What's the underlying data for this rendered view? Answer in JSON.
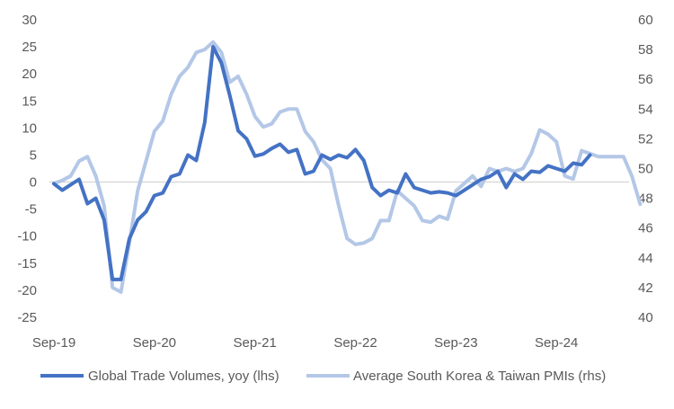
{
  "chart_data": {
    "type": "line",
    "title": "",
    "xlabel": "",
    "x_tick_labels": [
      "Sep-19",
      "Sep-20",
      "Sep-21",
      "Sep-22",
      "Sep-23",
      "Sep-24"
    ],
    "x_start": "2019-09",
    "y_left": {
      "range": [
        -25,
        30
      ],
      "step": 5,
      "ticks": [
        "30",
        "25",
        "20",
        "15",
        "10",
        "5",
        "0",
        "-5",
        "-10",
        "-15",
        "-20",
        "-25"
      ]
    },
    "y_right": {
      "range": [
        40,
        60
      ],
      "step": 2,
      "ticks": [
        "60",
        "58",
        "56",
        "54",
        "52",
        "50",
        "48",
        "46",
        "44",
        "42",
        "40"
      ]
    },
    "grid": false,
    "legend_position": "bottom",
    "colors": {
      "trade": "#4472C4",
      "pmi": "#B4C7E7",
      "axis": "#D9D9D9",
      "text": "#595959"
    },
    "series": [
      {
        "name": "Global Trade Volumes, yoy (lhs)",
        "axis": "left",
        "start": "2019-09",
        "values": [
          -0.3,
          -1.5,
          -0.5,
          0.5,
          -4.0,
          -3.0,
          -7.0,
          -18.0,
          -18.0,
          -10.5,
          -7.0,
          -5.5,
          -2.5,
          -2.0,
          1.0,
          1.5,
          5.0,
          4.0,
          11.0,
          25.0,
          22.0,
          16.0,
          9.5,
          8.0,
          4.8,
          5.2,
          6.2,
          7.0,
          5.5,
          6.0,
          1.5,
          2.0,
          5.0,
          4.2,
          5.0,
          4.5,
          6.0,
          4.0,
          -1.0,
          -2.5,
          -1.5,
          -2.0,
          1.5,
          -1.0,
          -1.5,
          -2.0,
          -1.8,
          -2.0,
          -2.5,
          -1.5,
          -0.5,
          0.5,
          1.0,
          2.0,
          -1.0,
          1.5,
          0.5,
          2.0,
          1.8,
          3.0,
          2.5,
          2.0,
          3.5,
          3.2,
          5.0
        ]
      },
      {
        "name": "Average South Korea & Taiwan PMIs (rhs)",
        "axis": "right",
        "start": "2019-09",
        "values": [
          49.0,
          49.2,
          49.5,
          50.5,
          50.8,
          49.5,
          47.5,
          42.0,
          41.7,
          45.0,
          48.5,
          50.5,
          52.5,
          53.2,
          55.0,
          56.2,
          56.8,
          57.8,
          58.0,
          58.5,
          57.8,
          55.8,
          56.2,
          55.0,
          53.5,
          52.8,
          53.0,
          53.8,
          54.0,
          54.0,
          52.5,
          51.8,
          50.6,
          50.0,
          47.5,
          45.3,
          44.9,
          45.0,
          45.3,
          46.5,
          46.5,
          48.5,
          48.0,
          47.5,
          46.5,
          46.4,
          46.8,
          46.6,
          48.5,
          49.0,
          49.5,
          48.8,
          50.0,
          49.8,
          50.0,
          49.8,
          50.0,
          51.0,
          52.6,
          52.3,
          51.8,
          49.5,
          49.3,
          51.2,
          51.0,
          50.8,
          50.8,
          50.8,
          50.8,
          49.5,
          47.6
        ]
      }
    ]
  }
}
